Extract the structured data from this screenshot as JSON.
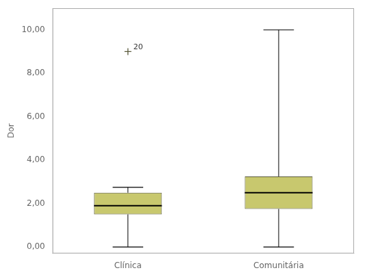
{
  "chart_data": {
    "type": "box",
    "categories": [
      "Clínica",
      "Comunitária"
    ],
    "boxes": [
      {
        "whisker_low": 0.0,
        "q1": 1.5,
        "median": 1.9,
        "q3": 2.5,
        "whisker_high": 2.75,
        "outliers": [
          9.0
        ],
        "outlier_labels": [
          "20"
        ]
      },
      {
        "whisker_low": 0.0,
        "q1": 1.75,
        "median": 2.5,
        "q3": 3.25,
        "whisker_high": 10.0,
        "outliers": []
      }
    ],
    "ylabel": "Dor",
    "ylim": [
      -0.3,
      11.0
    ],
    "yticks": [
      {
        "value": 0,
        "label": "0,00"
      },
      {
        "value": 2,
        "label": "2,00"
      },
      {
        "value": 4,
        "label": "4,00"
      },
      {
        "value": 6,
        "label": "6,00"
      },
      {
        "value": 8,
        "label": "8,00"
      },
      {
        "value": 10,
        "label": "10,00"
      }
    ],
    "color": "#c8c86e",
    "marker": "plus",
    "grid": false
  }
}
